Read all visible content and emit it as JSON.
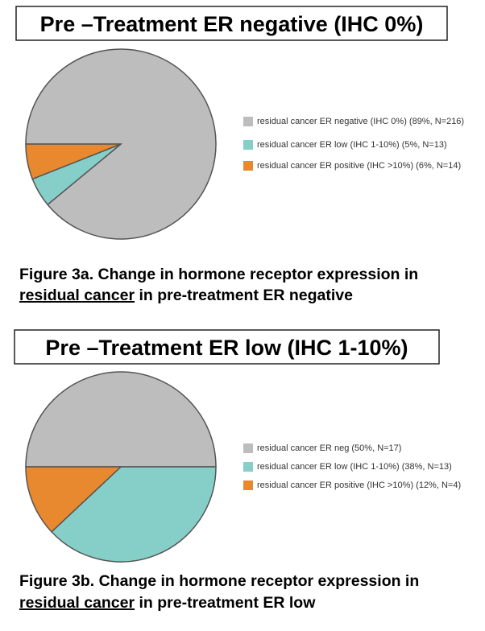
{
  "chart_data": [
    {
      "type": "pie",
      "title": "Pre –Treatment ER negative (IHC 0%)",
      "categories": [
        "residual cancer ER negative (IHC 0%) (89%, N=216)",
        "residual cancer ER low (IHC 1-10%) (5%, N=13)",
        "residual cancer ER positive (IHC >10%) (6%, N=14)"
      ],
      "values": [
        89,
        5,
        6
      ],
      "colors": [
        "#bdbdbd",
        "#86cfc8",
        "#e8892f"
      ],
      "caption": [
        "Figure 3a. Change in hormone receptor expression in",
        "residual cancer",
        "in pre-treatment ER negative"
      ]
    },
    {
      "type": "pie",
      "title": "Pre –Treatment ER low (IHC 1-10%)",
      "categories": [
        "residual cancer ER neg (50%, N=17)",
        "residual cancer ER low (IHC 1-10%) (38%, N=13)",
        "residual cancer ER positive (IHC >10%) (12%, N=4)"
      ],
      "values": [
        50,
        38,
        12
      ],
      "colors": [
        "#bdbdbd",
        "#86cfc8",
        "#e8892f"
      ],
      "caption": [
        "Figure 3b. Change in hormone receptor expression in",
        "residual cancer",
        "in pre-treatment ER low"
      ]
    }
  ]
}
